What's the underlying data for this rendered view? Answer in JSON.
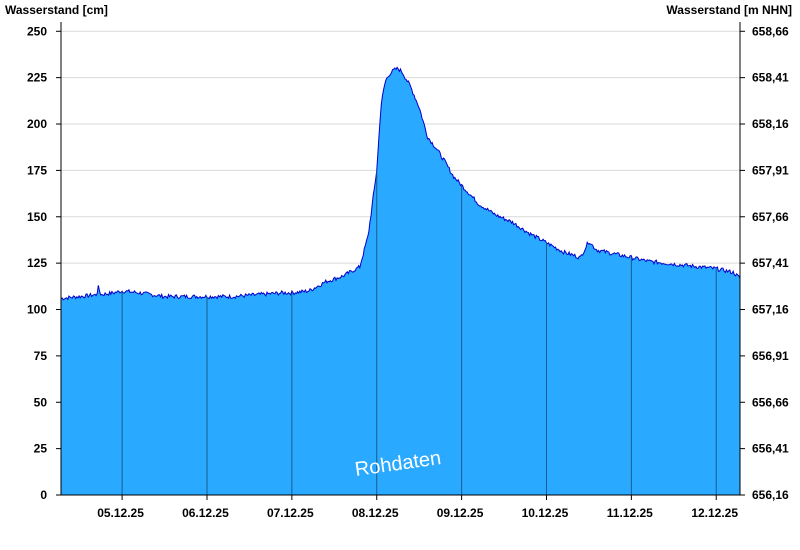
{
  "chart_data": {
    "type": "area",
    "ylabel_left": "Wasserstand [cm]",
    "ylabel_right": "Wasserstand [m NHN]",
    "watermark": "Rohdaten",
    "ylim": [
      0,
      255
    ],
    "yticks_left": [
      0,
      25,
      50,
      75,
      100,
      125,
      150,
      175,
      200,
      225,
      250
    ],
    "yticks_right": [
      "656,16",
      "656,41",
      "656,66",
      "656,91",
      "657,16",
      "657,41",
      "657,66",
      "657,91",
      "658,16",
      "658,41",
      "658,66"
    ],
    "xlim_days": [
      4.28,
      12.28
    ],
    "day_divider_days": [
      5,
      6,
      7,
      8,
      9,
      10,
      11,
      12
    ],
    "x_tick_labels": [
      "05.12.25",
      "06.12.25",
      "07.12.25",
      "08.12.25",
      "09.12.25",
      "10.12.25",
      "11.12.25",
      "12.12.25"
    ],
    "grid": true,
    "fill_color": "#29a9ff",
    "line_color": "#0000cc",
    "series": [
      {
        "x_days": [
          4.28,
          4.5,
          4.7,
          4.72,
          4.75,
          4.9,
          5.0,
          5.2,
          5.5,
          5.8,
          6.0,
          6.3,
          6.6,
          6.9,
          7.0,
          7.2,
          7.4,
          7.6,
          7.8,
          7.9,
          8.0,
          8.05,
          8.1,
          8.15,
          8.2,
          8.25,
          8.3,
          8.4,
          8.5,
          8.6,
          8.7,
          8.8,
          8.9,
          9.0,
          9.2,
          9.4,
          9.6,
          9.8,
          10.0,
          10.2,
          10.4,
          10.5,
          10.55,
          10.6,
          10.7,
          10.8,
          11.0,
          11.2,
          11.4,
          11.6,
          11.8,
          12.0,
          12.2,
          12.28
        ],
        "values": [
          106,
          107,
          108,
          112,
          108,
          109,
          110,
          109,
          107,
          107,
          107,
          107,
          108,
          109,
          109,
          110,
          115,
          118,
          123,
          140,
          175,
          210,
          223,
          227,
          229,
          230,
          228,
          220,
          209,
          193,
          187,
          180,
          172,
          167,
          157,
          151,
          147,
          141,
          136,
          131,
          128,
          137,
          134,
          132,
          131,
          130,
          128,
          126,
          125,
          124,
          123,
          122,
          120,
          117
        ]
      }
    ]
  }
}
